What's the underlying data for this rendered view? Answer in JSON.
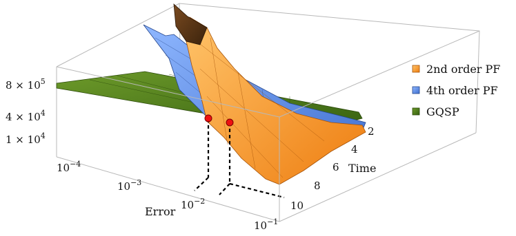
{
  "chart_data": {
    "type": "surface3d",
    "title": "",
    "axes": {
      "x": {
        "label": "Error",
        "scale": "log",
        "range": [
          0.0001,
          0.1
        ],
        "ticks": [
          {
            "base": "10",
            "exp": "−4"
          },
          {
            "base": "10",
            "exp": "−3"
          },
          {
            "base": "10",
            "exp": "−2"
          },
          {
            "base": "10",
            "exp": "−1"
          }
        ]
      },
      "y": {
        "label": "Time",
        "scale": "linear",
        "range": [
          1,
          11
        ],
        "ticks": [
          "2",
          "4",
          "6",
          "8",
          "10"
        ]
      },
      "z": {
        "label": "",
        "scale": "log",
        "ticks": [
          {
            "mant": "8 × 10",
            "exp": "5"
          },
          {
            "mant": "4 × 10",
            "exp": "4"
          },
          {
            "mant": "1 × 10",
            "exp": "4"
          }
        ]
      }
    },
    "legend": {
      "position": "right",
      "entries": [
        {
          "name": "2nd order PF",
          "color": "#ff9b2e"
        },
        {
          "name": "4th order PF",
          "color": "#5b8fe6"
        },
        {
          "name": "GQSP",
          "color": "#3f6d14"
        }
      ]
    },
    "series": [
      {
        "name": "2nd order PF",
        "color": "#ff9b2e",
        "type": "surface"
      },
      {
        "name": "4th order PF",
        "color": "#5b8fe6",
        "type": "surface"
      },
      {
        "name": "GQSP",
        "color": "#3f6d14",
        "type": "surface"
      }
    ],
    "markers": [
      {
        "type": "crossover",
        "series_pair": [
          "GQSP",
          "4th order PF"
        ],
        "color": "#ee1111"
      },
      {
        "type": "crossover",
        "series_pair": [
          "GQSP",
          "2nd order PF"
        ],
        "color": "#ee1111"
      }
    ],
    "grid": false,
    "box": true
  }
}
